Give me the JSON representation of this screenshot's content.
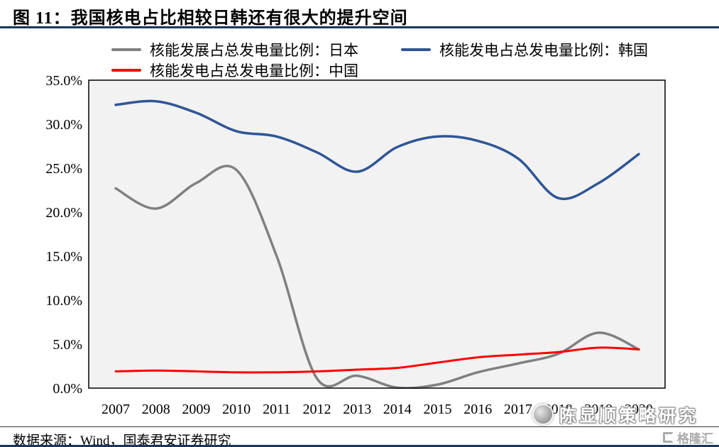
{
  "header": {
    "title": "图 11：我国核电占比相较日韩还有很大的提升空间"
  },
  "footer": {
    "source": "数据来源：Wind，国泰君安证券研究"
  },
  "watermark": {
    "text": "陈显顺策略研究",
    "logo_text": "格隆汇"
  },
  "colors": {
    "accent_rule": "#17375E",
    "japan": "#808080",
    "korea": "#2F5597",
    "china": "#FF0000",
    "plot_bg": "#F2F2F2"
  },
  "chart_data": {
    "type": "line",
    "title": "图 11：我国核电占比相较日韩还有很大的提升空间",
    "x": [
      "2007",
      "2008",
      "2009",
      "2010",
      "2011",
      "2012",
      "2013",
      "2014",
      "2015",
      "2016",
      "2017",
      "2018",
      "2019",
      "2020"
    ],
    "xlabel": "",
    "ylabel": "",
    "ylim": [
      0,
      35
    ],
    "ytick_step": 5,
    "ytick_labels": [
      "0.0%",
      "5.0%",
      "10.0%",
      "15.0%",
      "20.0%",
      "25.0%",
      "30.0%",
      "35.0%"
    ],
    "grid": false,
    "legend_position": "top",
    "smooth": true,
    "series": [
      {
        "name": "核能发展占总发电量比例：日本",
        "color": "#808080",
        "width": 3.5,
        "values": [
          22.7,
          20.4,
          23.3,
          24.8,
          15.0,
          1.1,
          1.4,
          0.05,
          0.4,
          1.8,
          2.8,
          3.9,
          6.3,
          4.4
        ]
      },
      {
        "name": "核能发电占总发电量比例：韩国",
        "color": "#2F5597",
        "width": 3.5,
        "values": [
          32.2,
          32.6,
          31.3,
          29.2,
          28.6,
          26.8,
          24.6,
          27.4,
          28.6,
          28.1,
          26.1,
          21.6,
          23.3,
          26.6
        ]
      },
      {
        "name": "核能发电占总发电量比例：中国",
        "color": "#FF0000",
        "width": 3,
        "values": [
          1.9,
          2.0,
          1.9,
          1.8,
          1.8,
          1.9,
          2.1,
          2.3,
          2.9,
          3.5,
          3.8,
          4.1,
          4.6,
          4.4
        ]
      }
    ]
  }
}
